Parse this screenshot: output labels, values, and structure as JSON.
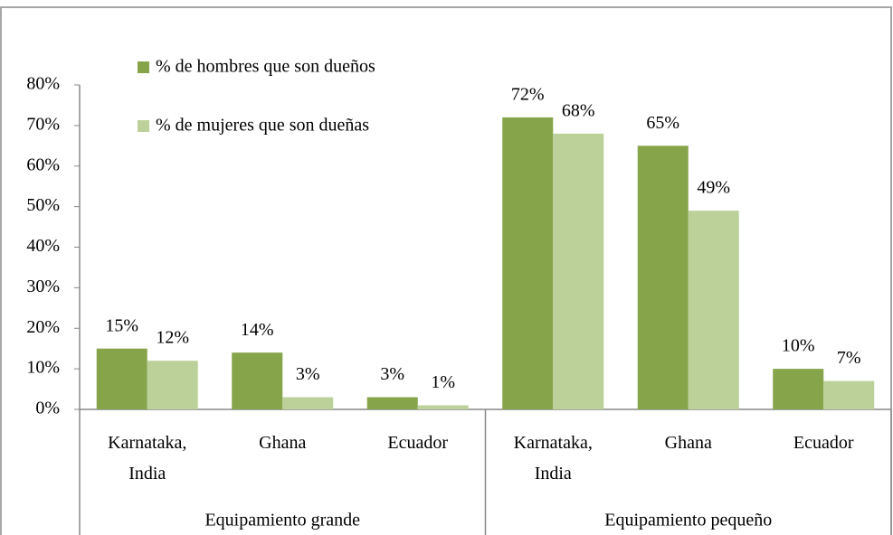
{
  "chart_data": {
    "type": "bar",
    "categories": [
      "Karnataka, India",
      "Ghana",
      "Ecuador",
      "Karnataka, India",
      "Ghana",
      "Ecuador"
    ],
    "groups": [
      "Equipamiento grande",
      "Equipamiento pequeño"
    ],
    "series": [
      {
        "name": "% de hombres que son dueños",
        "color": "#86a44a",
        "values": [
          15,
          14,
          3,
          72,
          65,
          10
        ],
        "value_labels": [
          "15%",
          "14%",
          "3%",
          "72%",
          "65%",
          "10%"
        ]
      },
      {
        "name": "% de mujeres que son dueñas",
        "color": "#bcd19a",
        "values": [
          12,
          3,
          1,
          68,
          49,
          7
        ],
        "value_labels": [
          "12%",
          "3%",
          "1%",
          "68%",
          "49%",
          "7%"
        ]
      }
    ],
    "ylim": [
      0,
      80
    ],
    "yticks": [
      {
        "value": 0,
        "label": "0%"
      },
      {
        "value": 10,
        "label": "10%"
      },
      {
        "value": 20,
        "label": "20%"
      },
      {
        "value": 30,
        "label": "30%"
      },
      {
        "value": 40,
        "label": "40%"
      },
      {
        "value": 50,
        "label": "50%"
      },
      {
        "value": 60,
        "label": "60%"
      },
      {
        "value": 70,
        "label": "70%"
      },
      {
        "value": 80,
        "label": "80%"
      }
    ],
    "grid": false,
    "legend": "top-left"
  }
}
